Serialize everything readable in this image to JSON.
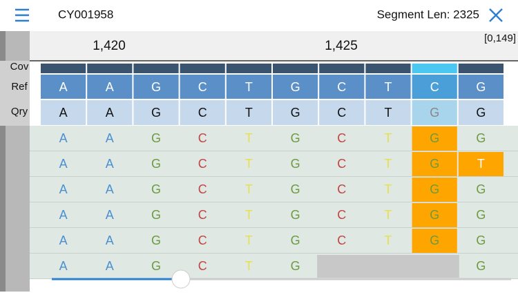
{
  "header": {
    "title": "CY001958",
    "segment_length": "Segment Len: 2325"
  },
  "ruler": {
    "positions": [
      "1,420",
      "1,425"
    ],
    "range": "[0,149]"
  },
  "track_labels": [
    "Cov",
    "Ref",
    "Qry"
  ],
  "reference": [
    "A",
    "A",
    "G",
    "C",
    "T",
    "G",
    "C",
    "T",
    "C",
    "G"
  ],
  "query": [
    "A",
    "A",
    "G",
    "C",
    "T",
    "G",
    "C",
    "T",
    "G",
    "G"
  ],
  "reads": [
    [
      "A",
      "A",
      "G",
      "C",
      "T",
      "G",
      "C",
      "T",
      "G",
      "G"
    ],
    [
      "A",
      "A",
      "G",
      "C",
      "T",
      "G",
      "C",
      "T",
      "G",
      "T"
    ],
    [
      "A",
      "A",
      "G",
      "C",
      "T",
      "G",
      "C",
      "T",
      "G",
      "G"
    ],
    [
      "A",
      "A",
      "G",
      "C",
      "T",
      "G",
      "C",
      "T",
      "G",
      "G"
    ],
    [
      "A",
      "A",
      "G",
      "C",
      "T",
      "G",
      "C",
      "T",
      "G",
      "G"
    ],
    [
      "A",
      "A",
      "G",
      "C",
      "T",
      "G",
      null,
      null,
      null,
      "G"
    ]
  ]
}
